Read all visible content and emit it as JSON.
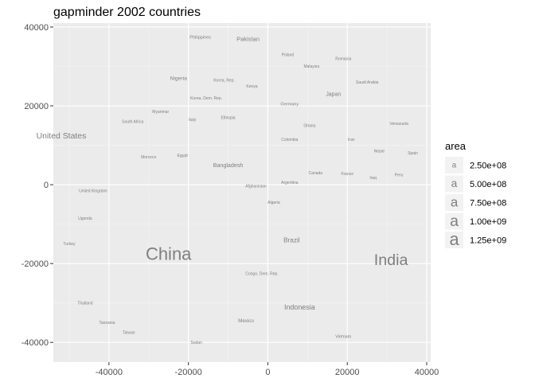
{
  "chart_data": {
    "type": "scatter",
    "title": "gapminder 2002 countries",
    "xlabel": "",
    "ylabel": "",
    "xlim": [
      -54000,
      41000
    ],
    "ylim": [
      -45000,
      41000
    ],
    "x_ticks": [
      -40000,
      -20000,
      0,
      20000,
      40000
    ],
    "x_tick_labels": [
      "-40000",
      "-20000",
      "0",
      "20000",
      "40000"
    ],
    "y_ticks": [
      -40000,
      -20000,
      0,
      20000,
      40000
    ],
    "y_tick_labels": [
      "-40000",
      "-20000",
      "0",
      "20000",
      "40000"
    ],
    "grid": true,
    "panel_background": "#ebebeb",
    "label_color": "#7f7f7f",
    "legend": {
      "title": "area",
      "position": "right",
      "key_glyph": "a",
      "entries": [
        {
          "label": "2.50e+08",
          "value": 250000000
        },
        {
          "label": "5.00e+08",
          "value": 500000000
        },
        {
          "label": "7.50e+08",
          "value": 750000000
        },
        {
          "label": "1.00e+09",
          "value": 1000000000
        },
        {
          "label": "1.25e+09",
          "value": 1250000000
        }
      ]
    },
    "points": [
      {
        "label": "Philippines",
        "x": -17000,
        "y": 37500,
        "area": 80000000
      },
      {
        "label": "Pakistan",
        "x": -5000,
        "y": 37000,
        "area": 150000000
      },
      {
        "label": "Poland",
        "x": 5000,
        "y": 33000,
        "area": 39000000
      },
      {
        "label": "Romania",
        "x": 19000,
        "y": 32000,
        "area": 22000000
      },
      {
        "label": "Malaysia",
        "x": 11000,
        "y": 30000,
        "area": 24000000
      },
      {
        "label": "Nigeria",
        "x": -22500,
        "y": 27000,
        "area": 120000000
      },
      {
        "label": "Korea, Rep.",
        "x": -11000,
        "y": 26500,
        "area": 47000000
      },
      {
        "label": "Kenya",
        "x": -4000,
        "y": 25000,
        "area": 31000000
      },
      {
        "label": "Saudi Arabia",
        "x": 25000,
        "y": 26000,
        "area": 24000000
      },
      {
        "label": "Japan",
        "x": 16500,
        "y": 23000,
        "area": 127000000
      },
      {
        "label": "Korea, Dem. Rep.",
        "x": -15500,
        "y": 22000,
        "area": 22000000
      },
      {
        "label": "Germany",
        "x": 5500,
        "y": 20500,
        "area": 82000000
      },
      {
        "label": "Myanmar",
        "x": -27000,
        "y": 18500,
        "area": 45000000
      },
      {
        "label": "Italy",
        "x": -19000,
        "y": 16500,
        "area": 57000000
      },
      {
        "label": "Ethiopia",
        "x": -10000,
        "y": 17000,
        "area": 67000000
      },
      {
        "label": "South Africa",
        "x": -34000,
        "y": 16000,
        "area": 44000000
      },
      {
        "label": "Ghana",
        "x": 10500,
        "y": 15000,
        "area": 20000000
      },
      {
        "label": "Venezuela",
        "x": 33000,
        "y": 15500,
        "area": 25000000
      },
      {
        "label": "United States",
        "x": -52000,
        "y": 12500,
        "area": 288000000
      },
      {
        "label": "Colombia",
        "x": 5500,
        "y": 11500,
        "area": 41000000
      },
      {
        "label": "Iran",
        "x": 21000,
        "y": 11500,
        "area": 66000000
      },
      {
        "label": "Nepal",
        "x": 28000,
        "y": 8500,
        "area": 25000000
      },
      {
        "label": "Spain",
        "x": 36500,
        "y": 8000,
        "area": 40000000
      },
      {
        "label": "Morocco",
        "x": -30000,
        "y": 7000,
        "area": 31000000
      },
      {
        "label": "Egypt",
        "x": -21500,
        "y": 7500,
        "area": 73000000
      },
      {
        "label": "Bangladesh",
        "x": -10000,
        "y": 5000,
        "area": 135000000
      },
      {
        "label": "Canada",
        "x": 12000,
        "y": 3000,
        "area": 31000000
      },
      {
        "label": "France",
        "x": 20000,
        "y": 2800,
        "area": 59000000
      },
      {
        "label": "Iraq",
        "x": 26500,
        "y": 1800,
        "area": 24000000
      },
      {
        "label": "Peru",
        "x": 33000,
        "y": 2500,
        "area": 27000000
      },
      {
        "label": "Afghanistan",
        "x": -3000,
        "y": -300,
        "area": 25000000
      },
      {
        "label": "Argentina",
        "x": 5500,
        "y": 600,
        "area": 38000000
      },
      {
        "label": "United Kingdom",
        "x": -44000,
        "y": -1500,
        "area": 59000000
      },
      {
        "label": "Algeria",
        "x": 1500,
        "y": -4500,
        "area": 31000000
      },
      {
        "label": "Uganda",
        "x": -46000,
        "y": -8500,
        "area": 25000000
      },
      {
        "label": "Turkey",
        "x": -50000,
        "y": -15000,
        "area": 67000000
      },
      {
        "label": "Brazil",
        "x": 6000,
        "y": -14000,
        "area": 179000000
      },
      {
        "label": "China",
        "x": -25000,
        "y": -17500,
        "area": 1280000000
      },
      {
        "label": "India",
        "x": 31000,
        "y": -19000,
        "area": 1030000000
      },
      {
        "label": "Congo, Dem. Rep.",
        "x": -1500,
        "y": -22500,
        "area": 55000000
      },
      {
        "label": "Thailand",
        "x": -46000,
        "y": -30000,
        "area": 62000000
      },
      {
        "label": "Indonesia",
        "x": 8000,
        "y": -31000,
        "area": 211000000
      },
      {
        "label": "Mexico",
        "x": -5500,
        "y": -34500,
        "area": 102000000
      },
      {
        "label": "Tanzania",
        "x": -40500,
        "y": -35000,
        "area": 35000000
      },
      {
        "label": "Taiwan",
        "x": -35000,
        "y": -37500,
        "area": 22000000
      },
      {
        "label": "Sudan",
        "x": -18000,
        "y": -40000,
        "area": 37000000
      },
      {
        "label": "Vietnam",
        "x": 19000,
        "y": -38500,
        "area": 80000000
      }
    ]
  }
}
